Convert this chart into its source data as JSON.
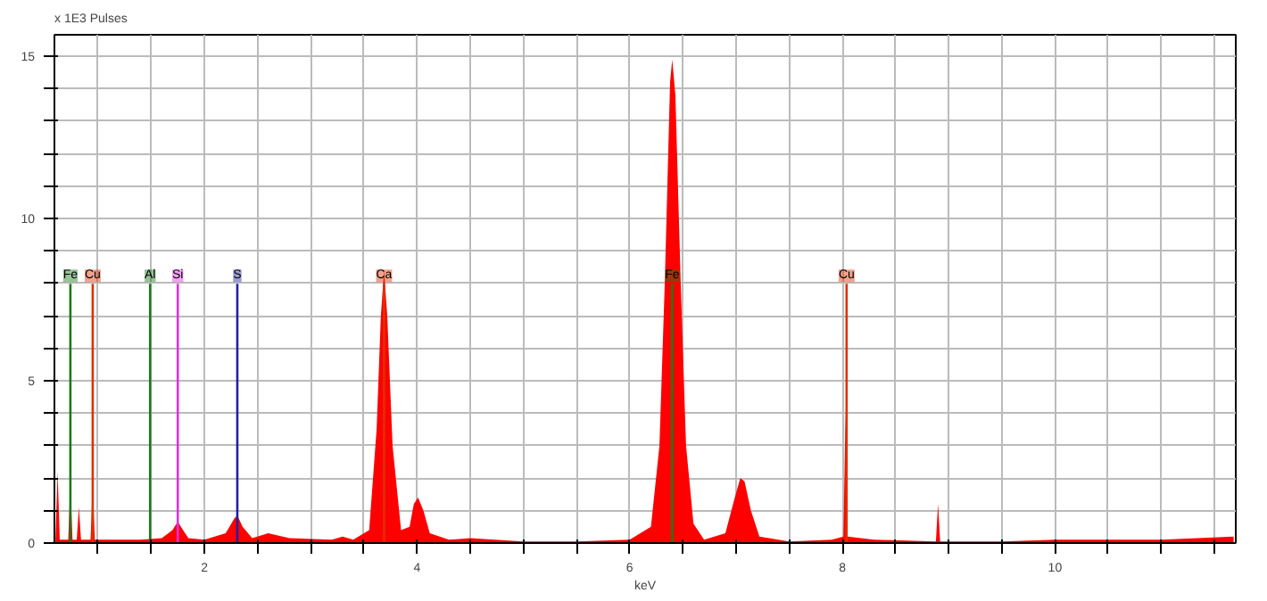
{
  "chart_data": {
    "type": "area",
    "xlabel": "keV",
    "ylabel": "x 1E3 Pulses",
    "x": [
      0.6,
      0.62,
      0.64,
      0.72,
      0.74,
      0.76,
      0.8,
      0.82,
      0.84,
      0.93,
      0.95,
      0.97,
      1.2,
      1.4,
      1.6,
      1.7,
      1.75,
      1.8,
      1.85,
      2.0,
      2.2,
      2.28,
      2.31,
      2.36,
      2.45,
      2.6,
      2.8,
      3.2,
      3.3,
      3.4,
      3.55,
      3.62,
      3.66,
      3.69,
      3.72,
      3.77,
      3.85,
      3.93,
      3.97,
      4.01,
      4.06,
      4.12,
      4.3,
      4.5,
      5.0,
      5.5,
      6.0,
      6.2,
      6.28,
      6.33,
      6.38,
      6.4,
      6.43,
      6.48,
      6.53,
      6.6,
      6.7,
      6.9,
      6.98,
      7.04,
      7.08,
      7.14,
      7.22,
      7.5,
      7.9,
      8.01,
      8.03,
      8.05,
      8.3,
      8.88,
      8.9,
      8.92,
      9.5,
      10.0,
      11.0,
      11.68
    ],
    "series": [
      {
        "color": "#ff0000",
        "values": [
          0.1,
          2.2,
          0.1,
          0.1,
          1.8,
          0.1,
          0.1,
          1.1,
          0.1,
          0.1,
          1.8,
          0.1,
          0.1,
          0.1,
          0.15,
          0.4,
          0.66,
          0.4,
          0.15,
          0.1,
          0.3,
          0.75,
          0.85,
          0.5,
          0.15,
          0.3,
          0.15,
          0.1,
          0.2,
          0.1,
          0.4,
          3.5,
          7.0,
          8.4,
          7.0,
          3.0,
          0.4,
          0.5,
          1.2,
          1.4,
          1.0,
          0.3,
          0.1,
          0.15,
          0.05,
          0.05,
          0.1,
          0.5,
          3.0,
          8.0,
          14.2,
          14.9,
          13.8,
          8.0,
          3.0,
          0.6,
          0.1,
          0.3,
          1.3,
          2.0,
          1.9,
          1.0,
          0.2,
          0.05,
          0.1,
          0.2,
          4.0,
          0.2,
          0.1,
          0.05,
          1.2,
          0.05,
          0.05,
          0.1,
          0.1,
          0.2
        ]
      }
    ],
    "xlim": [
      0.59,
      11.7
    ],
    "xticks": [
      {
        "value": 1,
        "label": null
      },
      {
        "value": 1.5,
        "label": null
      },
      2,
      {
        "value": 2.5,
        "label": null
      },
      {
        "value": 3,
        "label": null
      },
      {
        "value": 3.5,
        "label": null
      },
      4,
      {
        "value": 4.5,
        "label": null
      },
      {
        "value": 5,
        "label": null
      },
      {
        "value": 5.5,
        "label": null
      },
      6,
      {
        "value": 6.5,
        "label": null
      },
      {
        "value": 7,
        "label": null
      },
      {
        "value": 7.5,
        "label": null
      },
      8,
      {
        "value": 8.5,
        "label": null
      },
      {
        "value": 9,
        "label": null
      },
      {
        "value": 9.5,
        "label": null
      },
      10,
      {
        "value": 10.5,
        "label": null
      },
      {
        "value": 11,
        "label": null
      },
      {
        "value": 11.5,
        "label": null
      }
    ],
    "ylim": [
      0,
      15.66
    ],
    "yticks": [
      0,
      {
        "value": 1,
        "label": null
      },
      {
        "value": 2,
        "label": null
      },
      {
        "value": 3,
        "label": null
      },
      {
        "value": 4,
        "label": null
      },
      5,
      {
        "value": 6,
        "label": null
      },
      {
        "value": 7,
        "label": null
      },
      {
        "value": 8,
        "label": null
      },
      {
        "value": 9,
        "label": null
      },
      10,
      {
        "value": 11,
        "label": null
      },
      {
        "value": 12,
        "label": null
      },
      {
        "value": 13,
        "label": null
      },
      {
        "value": 14,
        "label": null
      },
      15
    ],
    "grid": true,
    "ref_lines": [
      {
        "axis": "x",
        "value": 0.74,
        "label": "Fe",
        "color": "#1a7a1a"
      },
      {
        "axis": "x",
        "value": 0.95,
        "label": "Cu",
        "color": "#e03000"
      },
      {
        "axis": "x",
        "value": 1.49,
        "label": "Al",
        "color": "#1a7a1a"
      },
      {
        "axis": "x",
        "value": 1.75,
        "label": "Si",
        "color": "#e030e0"
      },
      {
        "axis": "x",
        "value": 2.31,
        "label": "S",
        "color": "#2020a0"
      },
      {
        "axis": "x",
        "value": 3.69,
        "label": "Ca",
        "color": "#e03000"
      },
      {
        "axis": "x",
        "value": 6.4,
        "label": "Fe",
        "color": "#1a7a1a"
      },
      {
        "axis": "x",
        "value": 8.04,
        "label": "Cu",
        "color": "#e03000"
      }
    ]
  }
}
